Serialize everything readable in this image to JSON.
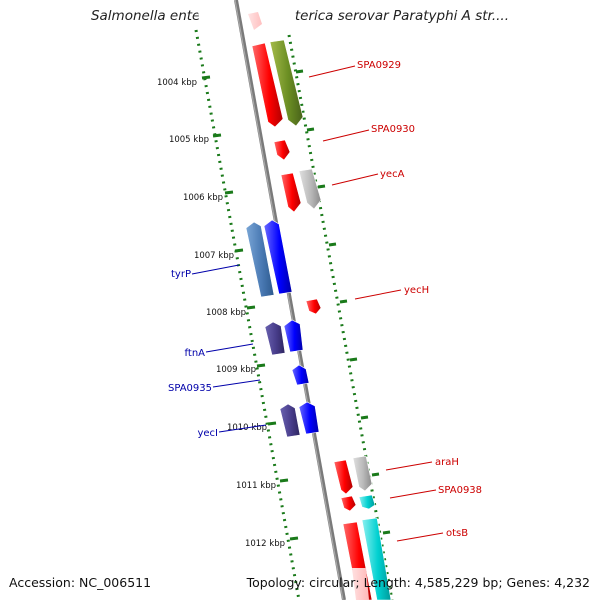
{
  "title": "Salmonella enterica subsp. enterica serovar Paratyphi A str....",
  "footer": {
    "accession": "Accession: NC_006511",
    "summary": "Topology: circular; Length: 4,585,229 bp; Genes: 4,232"
  },
  "scale_labels": [
    "1004 kbp",
    "1005 kbp",
    "1006 kbp",
    "1007 kbp",
    "1008 kbp",
    "1009 kbp",
    "1010 kbp",
    "1011 kbp",
    "1012 kbp"
  ],
  "gene_labels": {
    "forward": [
      "SPA0929",
      "SPA0930",
      "yecA",
      "yecH",
      "araH",
      "SPA0938",
      "otsB"
    ],
    "reverse": [
      "tyrP",
      "ftnA",
      "SPA0935",
      "yecI"
    ]
  },
  "colors": {
    "forward_label": "#cc0000",
    "reverse_label": "#0000aa",
    "forward_cds": "#ff0000",
    "reverse_cds": "#0000ff",
    "ruler": "#1a7a1a",
    "backbone": "#808080"
  }
}
